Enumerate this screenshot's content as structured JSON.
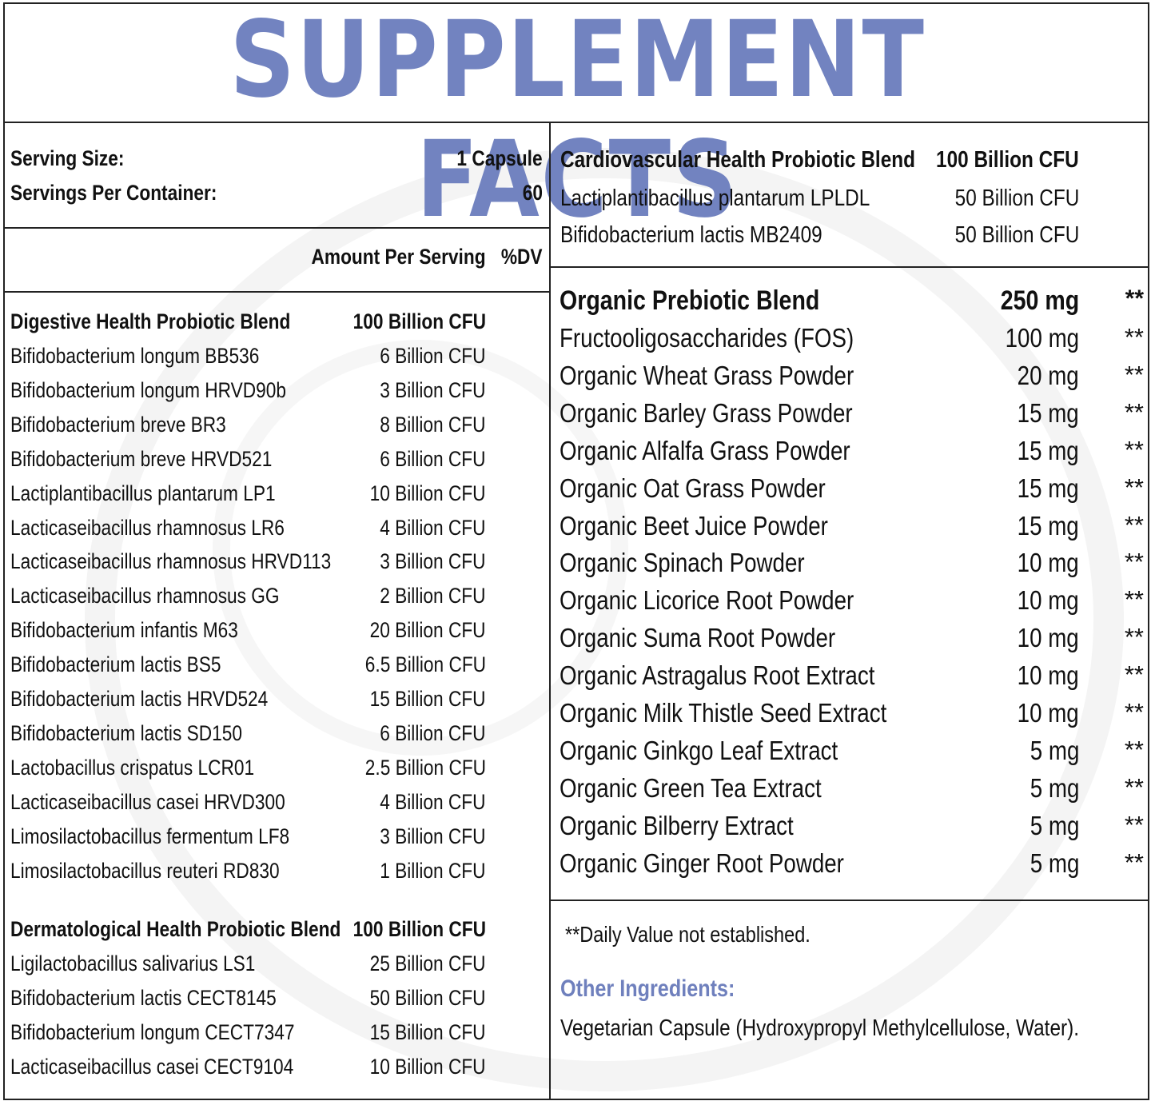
{
  "title": "SUPPLEMENT FACTS",
  "serving": {
    "size_label": "Serving Size:",
    "size_value": "1 Capsule",
    "per_container_label": "Servings Per Container:",
    "per_container_value": "60"
  },
  "columns": {
    "amount": "Amount Per Serving",
    "dv": "%DV"
  },
  "digestive": {
    "name": "Digestive Health Probiotic Blend",
    "total": "100 Billion CFU",
    "items": [
      {
        "name": "Bifidobacterium longum BB536",
        "amount": "6 Billion CFU"
      },
      {
        "name": "Bifidobacterium longum  HRVD90b",
        "amount": "3 Billion CFU"
      },
      {
        "name": "Bifidobacterium breve BR3",
        "amount": "8 Billion CFU"
      },
      {
        "name": "Bifidobacterium breve HRVD521",
        "amount": "6 Billion CFU"
      },
      {
        "name": "Lactiplantibacillus plantarum LP1",
        "amount": "10 Billion CFU"
      },
      {
        "name": "Lacticaseibacillus rhamnosus  LR6",
        "amount": "4 Billion CFU"
      },
      {
        "name": "Lacticaseibacillus rhamnosus HRVD113",
        "amount": "3 Billion CFU"
      },
      {
        "name": "Lacticaseibacillus rhamnosus GG",
        "amount": "2 Billion CFU"
      },
      {
        "name": "Bifidobacterium infantis M63",
        "amount": "20 Billion CFU"
      },
      {
        "name": "Bifidobacterium lactis  BS5",
        "amount": "6.5 Billion CFU"
      },
      {
        "name": "Bifidobacterium lactis  HRVD524",
        "amount": "15 Billion CFU"
      },
      {
        "name": "Bifidobacterium lactis SD150",
        "amount": "6 Billion CFU"
      },
      {
        "name": "Lactobacillus crispatus LCR01",
        "amount": "2.5 Billion CFU"
      },
      {
        "name": "Lacticaseibacillus casei HRVD300",
        "amount": "4 Billion CFU"
      },
      {
        "name": "Limosilactobacillus fermentum LF8",
        "amount": "3 Billion CFU"
      },
      {
        "name": "Limosilactobacillus reuteri RD830",
        "amount": "1 Billion CFU"
      }
    ]
  },
  "dermatological": {
    "name": "Dermatological Health Probiotic Blend",
    "total": "100 Billion CFU",
    "items": [
      {
        "name": "Ligilactobacillus salivarius LS1",
        "amount": "25 Billion CFU"
      },
      {
        "name": "Bifidobacterium lactis CECT8145",
        "amount": "50 Billion CFU"
      },
      {
        "name": "Bifidobacterium longum CECT7347",
        "amount": "15 Billion CFU"
      },
      {
        "name": "Lacticaseibacillus casei CECT9104",
        "amount": "10 Billion CFU"
      }
    ]
  },
  "cardio": {
    "name": "Cardiovascular Health Probiotic Blend",
    "total": "100 Billion CFU",
    "items": [
      {
        "name": "Lactiplantibacillus plantarum LPLDL",
        "amount": "50 Billion CFU"
      },
      {
        "name": "Bifidobacterium lactis MB2409",
        "amount": "50 Billion CFU"
      }
    ]
  },
  "prebiotic": {
    "name": "Organic Prebiotic Blend",
    "total": "250 mg",
    "dv": "**",
    "items": [
      {
        "name": "Fructooligosaccharides (FOS)",
        "amount": "100 mg",
        "dv": "**"
      },
      {
        "name": "Organic Wheat Grass Powder",
        "amount": "20 mg",
        "dv": "**"
      },
      {
        "name": "Organic Barley Grass Powder",
        "amount": "15 mg",
        "dv": "**"
      },
      {
        "name": "Organic Alfalfa Grass Powder",
        "amount": "15 mg",
        "dv": "**"
      },
      {
        "name": "Organic Oat Grass Powder",
        "amount": "15 mg",
        "dv": "**"
      },
      {
        "name": "Organic Beet Juice Powder",
        "amount": "15 mg",
        "dv": "**"
      },
      {
        "name": "Organic Spinach Powder",
        "amount": "10 mg",
        "dv": "**"
      },
      {
        "name": "Organic Licorice Root Powder",
        "amount": "10 mg",
        "dv": "**"
      },
      {
        "name": "Organic Suma Root Powder",
        "amount": "10 mg",
        "dv": "**"
      },
      {
        "name": "Organic Astragalus Root Extract",
        "amount": "10 mg",
        "dv": "**"
      },
      {
        "name": "Organic Milk Thistle Seed Extract",
        "amount": "10 mg",
        "dv": "**"
      },
      {
        "name": "Organic Ginkgo Leaf Extract",
        "amount": "5 mg",
        "dv": "**"
      },
      {
        "name": "Organic Green Tea Extract",
        "amount": "5 mg",
        "dv": "**"
      },
      {
        "name": "Organic Bilberry Extract",
        "amount": "5 mg",
        "dv": "**"
      },
      {
        "name": "Organic Ginger Root Powder",
        "amount": "5 mg",
        "dv": "**"
      }
    ]
  },
  "footnote": "**Daily Value not established.",
  "other_ingredients": {
    "label": "Other Ingredients:",
    "text": "Vegetarian Capsule (Hydroxypropyl Methylcellulose, Water)."
  },
  "colors": {
    "title": "#7283c0",
    "accent": "#6f80bd",
    "border": "#222222"
  }
}
